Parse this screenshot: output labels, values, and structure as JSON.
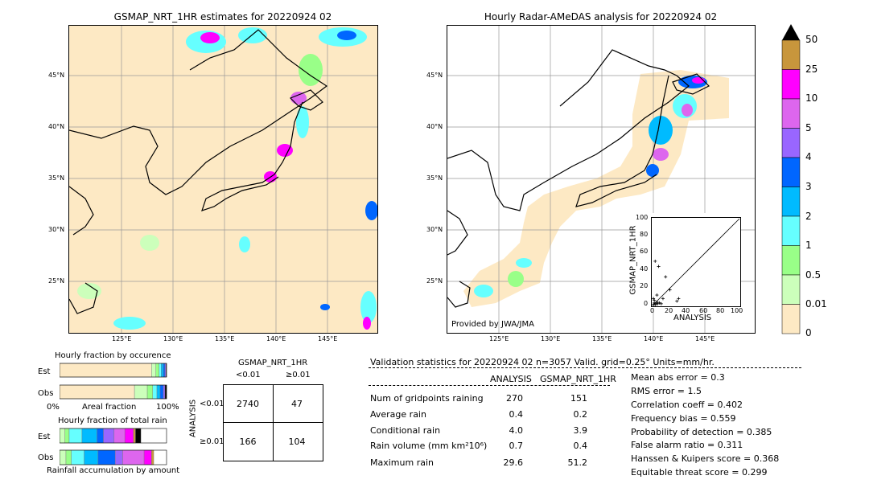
{
  "left_map": {
    "title": "GSMAP_NRT_1HR estimates for 20220924 02",
    "lat_labels": [
      "45°N",
      "40°N",
      "35°N",
      "30°N",
      "25°N"
    ],
    "lon_labels": [
      "125°E",
      "130°E",
      "135°E",
      "140°E",
      "145°E"
    ]
  },
  "right_map": {
    "title": "Hourly Radar-AMeDAS analysis for 20220924 02",
    "lat_labels": [
      "45°N",
      "40°N",
      "35°N",
      "30°N",
      "25°N"
    ],
    "lon_labels": [
      "125°E",
      "130°E",
      "135°E",
      "140°E",
      "145°E"
    ],
    "credit": "Provided by JWA/JMA"
  },
  "colorbar": {
    "labels": [
      "50",
      "25",
      "10",
      "5",
      "4",
      "3",
      "2",
      "1",
      "0.5",
      "0.01",
      "0"
    ],
    "colors": [
      "#c8963c",
      "#ff00ff",
      "#dd66ee",
      "#9966ff",
      "#0066ff",
      "#00bbff",
      "#66ffff",
      "#99ff88",
      "#ccffbb",
      "#fde9c4"
    ]
  },
  "chart_data": [
    {
      "type": "scatter",
      "title": "",
      "xlabel": "ANALYSIS",
      "ylabel": "GSMAP_NRT_1HR",
      "xlim": [
        0,
        100
      ],
      "ylim": [
        0,
        100
      ],
      "x_ticks": [
        "0",
        "20",
        "40",
        "60",
        "80",
        "100"
      ],
      "y_ticks": [
        "0",
        "20",
        "40",
        "60",
        "80",
        "100"
      ],
      "points": [
        [
          1,
          1
        ],
        [
          2,
          3
        ],
        [
          3,
          1
        ],
        [
          4,
          2
        ],
        [
          5,
          4
        ],
        [
          6,
          2
        ],
        [
          2,
          6
        ],
        [
          8,
          3
        ],
        [
          1,
          8
        ],
        [
          10,
          2
        ],
        [
          3,
          51
        ],
        [
          7,
          45
        ],
        [
          12,
          8
        ],
        [
          20,
          18
        ],
        [
          28,
          5
        ],
        [
          15,
          33
        ],
        [
          5,
          12
        ],
        [
          30,
          8
        ]
      ],
      "diagonal": true
    },
    {
      "type": "bar",
      "title": "Hourly fraction by occurence",
      "orientation": "horizontal-stacked",
      "categories": [
        "Est",
        "Obs"
      ],
      "x_tick_labels": [
        "0%",
        "100%"
      ],
      "xlabel": "Areal fraction",
      "series": [
        {
          "color": "#fde9c4",
          "values": [
            0.86,
            0.7
          ]
        },
        {
          "color": "#ccffbb",
          "values": [
            0.04,
            0.12
          ]
        },
        {
          "color": "#99ff88",
          "values": [
            0.03,
            0.05
          ]
        },
        {
          "color": "#66ffff",
          "values": [
            0.02,
            0.04
          ]
        },
        {
          "color": "#00bbff",
          "values": [
            0.02,
            0.03
          ]
        },
        {
          "color": "#0066ff",
          "values": [
            0.015,
            0.03
          ]
        },
        {
          "color": "#9966ff",
          "values": [
            0.01,
            0.015
          ]
        },
        {
          "color": "#000000",
          "values": [
            0.005,
            0.015
          ]
        }
      ]
    },
    {
      "type": "bar",
      "title": "Hourly fraction of total rain",
      "orientation": "horizontal-stacked",
      "categories": [
        "Est",
        "Obs"
      ],
      "xlabel": "Rainfall accumulation by amount",
      "series": [
        {
          "color": "#ccffbb",
          "values": [
            0.05,
            0.06
          ]
        },
        {
          "color": "#99ff88",
          "values": [
            0.04,
            0.05
          ]
        },
        {
          "color": "#66ffff",
          "values": [
            0.12,
            0.12
          ]
        },
        {
          "color": "#00bbff",
          "values": [
            0.14,
            0.13
          ]
        },
        {
          "color": "#0066ff",
          "values": [
            0.06,
            0.16
          ]
        },
        {
          "color": "#9966ff",
          "values": [
            0.1,
            0.07
          ]
        },
        {
          "color": "#dd66ee",
          "values": [
            0.1,
            0.2
          ]
        },
        {
          "color": "#ff00ff",
          "values": [
            0.08,
            0.07
          ]
        },
        {
          "color": "#c8963c",
          "values": [
            0.02,
            0.02
          ]
        },
        {
          "color": "#000000",
          "values": [
            0.05,
            0.0
          ]
        }
      ]
    }
  ],
  "contingency": {
    "title": "GSMAP_NRT_1HR",
    "col_labels": [
      "<0.01",
      "≥0.01"
    ],
    "row_axis_label": "ANALYSIS",
    "row_labels": [
      "<0.01",
      "≥0.01"
    ],
    "cells": [
      "2740",
      "47",
      "166",
      "104"
    ]
  },
  "validation": {
    "header": "Validation statistics for 20220924 02  n=3057 Valid. grid=0.25° Units=mm/hr.",
    "col_analysis": "ANALYSIS",
    "col_gsmap": "GSMAP_NRT_1HR",
    "rows": [
      {
        "label": "Num of gridpoints raining",
        "analysis": "270",
        "gsmap": "151"
      },
      {
        "label": "Average rain",
        "analysis": "0.4",
        "gsmap": "0.2"
      },
      {
        "label": "Conditional rain",
        "analysis": "4.0",
        "gsmap": "3.9"
      },
      {
        "label": "Rain volume (mm km²10⁶)",
        "analysis": "0.7",
        "gsmap": "0.4"
      },
      {
        "label": "Maximum rain",
        "analysis": "29.6",
        "gsmap": "51.2"
      }
    ],
    "scores": [
      "Mean abs error =    0.3",
      "RMS error =    1.5",
      "Correlation coeff =  0.402",
      "Frequency bias =  0.559",
      "Probability of detection =  0.385",
      "False alarm ratio =  0.311",
      "Hanssen & Kuipers score =  0.368",
      "Equitable threat score =  0.299"
    ]
  }
}
